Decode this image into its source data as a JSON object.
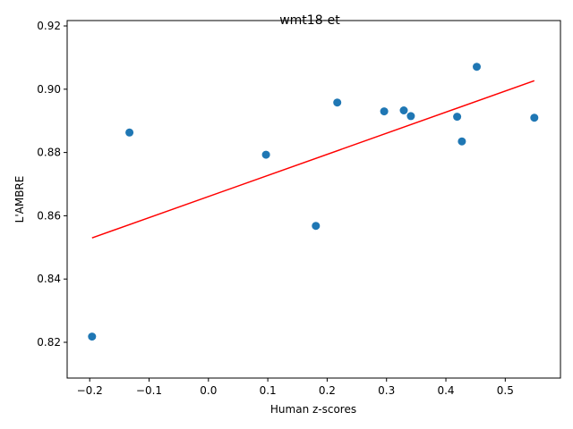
{
  "chart_data": {
    "type": "scatter",
    "title": "wmt18-et",
    "xlabel": "Human z-scores",
    "ylabel": "L'AMBRE",
    "xlim": [
      -0.238,
      0.593
    ],
    "ylim": [
      0.8087,
      0.9217
    ],
    "xticks": [
      -0.2,
      -0.1,
      0.0,
      0.1,
      0.2,
      0.3,
      0.4,
      0.5
    ],
    "xtick_labels": [
      "−0.2",
      "−0.1",
      "0.0",
      "0.1",
      "0.2",
      "0.3",
      "0.4",
      "0.5"
    ],
    "yticks": [
      0.82,
      0.84,
      0.86,
      0.88,
      0.9,
      0.92
    ],
    "ytick_labels": [
      "0.82",
      "0.84",
      "0.86",
      "0.88",
      "0.90",
      "0.92"
    ],
    "grid": false,
    "points": [
      {
        "x": -0.196,
        "y": 0.8218
      },
      {
        "x": -0.133,
        "y": 0.8863
      },
      {
        "x": 0.097,
        "y": 0.8793
      },
      {
        "x": 0.181,
        "y": 0.8568
      },
      {
        "x": 0.217,
        "y": 0.8958
      },
      {
        "x": 0.296,
        "y": 0.893
      },
      {
        "x": 0.329,
        "y": 0.8933
      },
      {
        "x": 0.341,
        "y": 0.8915
      },
      {
        "x": 0.419,
        "y": 0.8913
      },
      {
        "x": 0.427,
        "y": 0.8835
      },
      {
        "x": 0.452,
        "y": 0.9071
      },
      {
        "x": 0.549,
        "y": 0.891
      }
    ],
    "fit_line": {
      "x": [
        -0.196,
        0.549
      ],
      "y": [
        0.853,
        0.9027
      ]
    },
    "colors": {
      "points": "#1f77b4",
      "fit_line": "#ff0000",
      "axes": "#000000"
    }
  }
}
